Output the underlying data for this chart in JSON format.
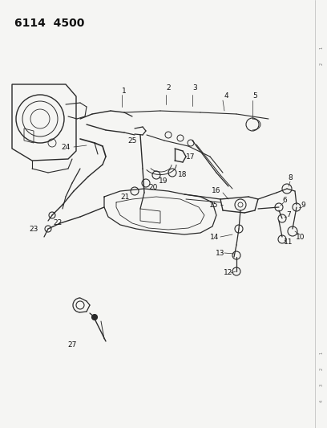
{
  "title": "6114  4500",
  "bg_color": "#f5f5f3",
  "line_color": "#2a2a2a",
  "title_fontsize": 10,
  "title_fontweight": "bold",
  "label_fontsize": 6.5,
  "right_border_color": "#999999",
  "fig_w": 4.08,
  "fig_h": 5.33,
  "dpi": 100
}
